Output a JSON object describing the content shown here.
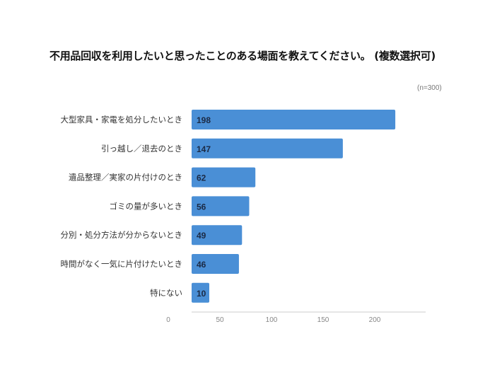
{
  "chart_data": {
    "type": "bar",
    "orientation": "horizontal",
    "title": "不用品回収を利用したいと思ったことのある場面を教えてください。 (複数選択可)",
    "note": "(n=300)",
    "categories": [
      "大型家具・家電を処分したいとき",
      "引っ越し／退去のとき",
      "遺品整理／実家の片付けのとき",
      "ゴミの量が多いとき",
      "分別・処分方法が分からないとき",
      "時間がなく一気に片付けたいとき",
      "特にない"
    ],
    "values": [
      198,
      147,
      62,
      56,
      49,
      46,
      10
    ],
    "xticks": [
      0,
      50,
      100,
      150,
      200
    ],
    "xlim": [
      0,
      227
    ],
    "grid": false,
    "bar_color": "#4a8fd6",
    "data_labels": true
  }
}
